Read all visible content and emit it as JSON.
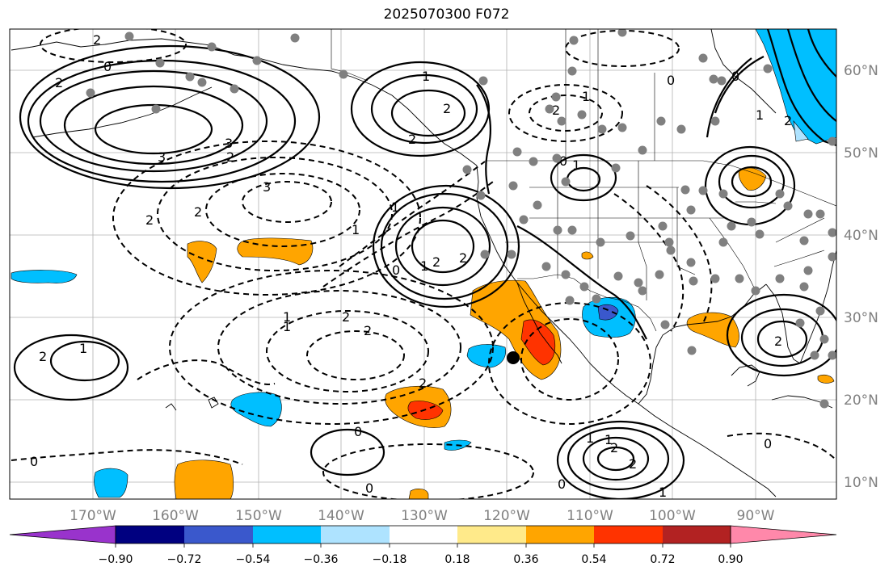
{
  "title": "2025070300 F072",
  "map": {
    "lon_labels": [
      "170°W",
      "160°W",
      "150°W",
      "140°W",
      "130°W",
      "120°W",
      "110°W",
      "100°W",
      "90°W"
    ],
    "lat_labels": [
      "60°N",
      "50°N",
      "40°N",
      "30°N",
      "20°N",
      "10°N"
    ],
    "grid": true,
    "station_color": "#808080",
    "marker_color": "#000000"
  },
  "colorbar": {
    "colors": [
      "#9933cc",
      "#000080",
      "#3a58cc",
      "#00bfff",
      "#aee3ff",
      "#ffffff",
      "#ffea8a",
      "#ffa500",
      "#ff3300",
      "#b22222",
      "#ff88aa"
    ],
    "tick_labels": [
      "−0.90",
      "−0.72",
      "−0.54",
      "−0.36",
      "−0.18",
      "0.18",
      "0.36",
      "0.54",
      "0.72",
      "0.90"
    ]
  },
  "contour_labels": {
    "solid": [
      "1",
      "2",
      "2",
      "1",
      "2",
      "1",
      "2",
      "0",
      "2",
      "2",
      "0",
      "1",
      "2",
      "1",
      "1",
      "0",
      "2",
      "2"
    ],
    "dashed": [
      "2",
      "0",
      "3",
      "1",
      "2",
      "3",
      "2",
      "1",
      "3",
      "2",
      "2",
      "2",
      "1",
      "2",
      "0",
      "0",
      "0",
      "2",
      "1",
      "0",
      "1",
      "0",
      "2",
      "1",
      "0",
      "1"
    ]
  }
}
